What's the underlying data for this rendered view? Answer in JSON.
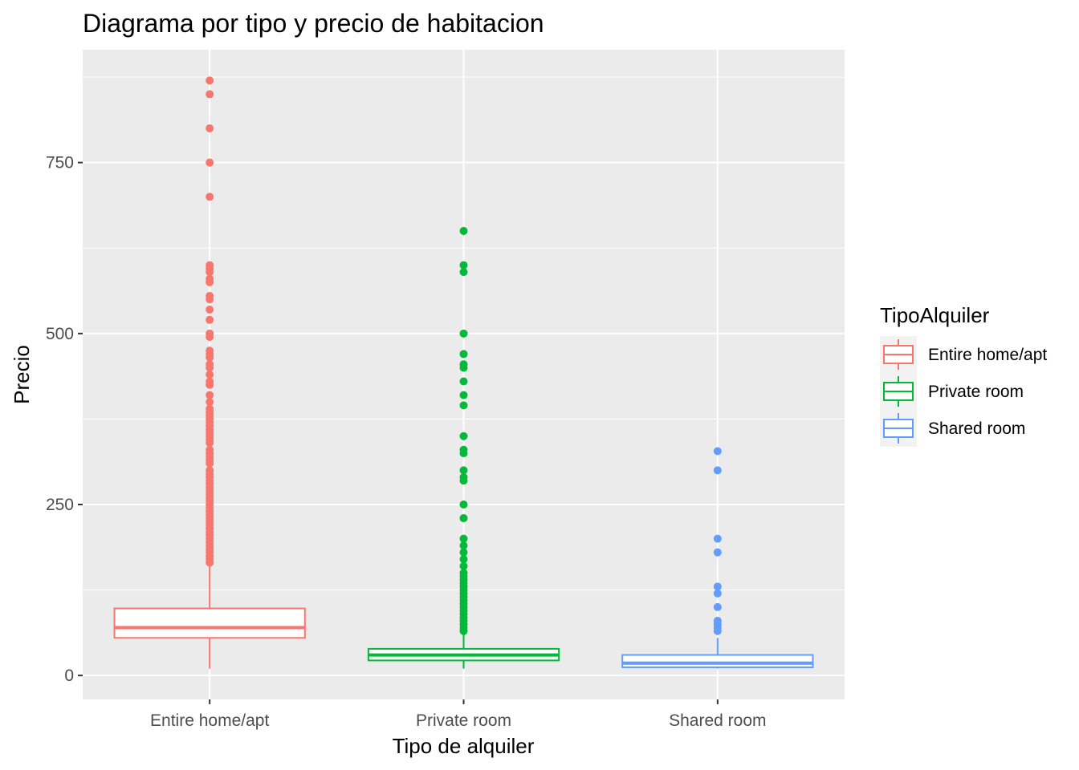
{
  "chart_data": {
    "type": "boxplot",
    "title": "Diagrama por tipo y precio de habitacion",
    "xlabel": "Tipo de alquiler",
    "ylabel": "Precio",
    "ylim": [
      -35,
      915
    ],
    "yticks": [
      0,
      250,
      500,
      750
    ],
    "ytick_labels": [
      "0",
      "250",
      "500",
      "750"
    ],
    "grid": true,
    "legend": {
      "title": "TipoAlquiler",
      "position": "right",
      "labels": [
        "Entire home/apt",
        "Private room",
        "Shared room"
      ]
    },
    "categories": [
      "Entire home/apt",
      "Private room",
      "Shared room"
    ],
    "series": [
      {
        "name": "Entire home/apt",
        "color": "#F8766D",
        "whisker_low": 10,
        "q1": 55,
        "median": 70,
        "q3": 98,
        "whisker_high": 163,
        "outliers": [
          870,
          850,
          800,
          750,
          700,
          600,
          595,
          590,
          580,
          575,
          555,
          550,
          535,
          520,
          500,
          495,
          475,
          470,
          465,
          455,
          450,
          440,
          430,
          425,
          410,
          400,
          390,
          385,
          380,
          375,
          370,
          365,
          360,
          355,
          350,
          345,
          340,
          330,
          325,
          320,
          315,
          310,
          300,
          295,
          290,
          285,
          280,
          275,
          270,
          265,
          260,
          255,
          250,
          245,
          240,
          235,
          230,
          225,
          220,
          215,
          210,
          205,
          200,
          195,
          190,
          185,
          180,
          175,
          170,
          165
        ]
      },
      {
        "name": "Private room",
        "color": "#00BA38",
        "whisker_low": 10,
        "q1": 22,
        "median": 30,
        "q3": 39,
        "whisker_high": 62,
        "outliers": [
          650,
          600,
          590,
          500,
          470,
          455,
          450,
          430,
          410,
          395,
          350,
          330,
          325,
          300,
          290,
          285,
          250,
          230,
          200,
          190,
          180,
          170,
          160,
          150,
          145,
          140,
          135,
          130,
          125,
          120,
          115,
          110,
          105,
          100,
          95,
          90,
          85,
          80,
          75,
          70,
          65
        ]
      },
      {
        "name": "Shared room",
        "color": "#619CFF",
        "whisker_low": 10,
        "q1": 12,
        "median": 18,
        "q3": 30,
        "whisker_high": 55,
        "outliers": [
          328,
          300,
          200,
          180,
          130,
          120,
          100,
          80,
          75,
          70,
          65
        ]
      }
    ]
  }
}
